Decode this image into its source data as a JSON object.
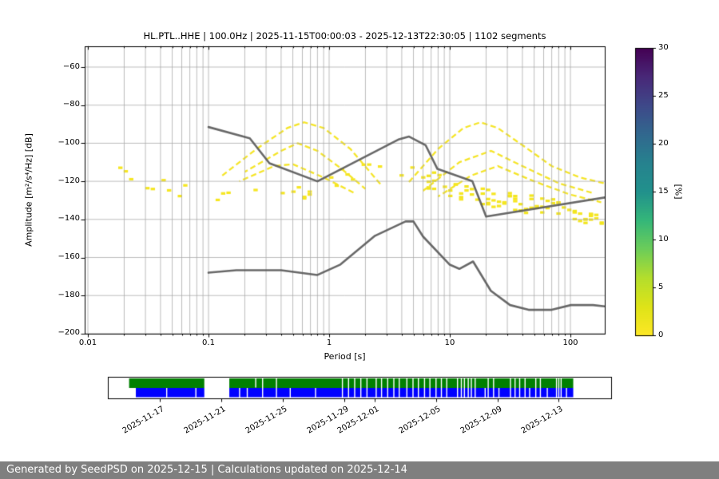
{
  "chart_data": {
    "type": "heatmap",
    "title": "HL.PTL..HHE | 100.0Hz | 2025-11-15T00:00:03 - 2025-12-13T22:30:05 | 1102 segments",
    "xlabel": "Period [s]",
    "ylabel": "Amplitude [m²/s⁴/Hz] [dB]",
    "xscale": "log",
    "xlim": [
      0.0094,
      193
    ],
    "ylim": [
      -200,
      -49
    ],
    "xticks": [
      0.01,
      0.1,
      1,
      10,
      100
    ],
    "xtick_labels": [
      "0.01",
      "0.1",
      "1",
      "10",
      "100"
    ],
    "yticks": [
      -60,
      -80,
      -100,
      -120,
      -140,
      -160,
      -180,
      -200
    ],
    "ytick_labels": [
      "−60",
      "−80",
      "−100",
      "−120",
      "−140",
      "−160",
      "−180",
      "−200"
    ],
    "grid": true,
    "colorbar": {
      "label": "[%]",
      "min": 0,
      "max": 30,
      "ticks": [
        0,
        5,
        10,
        15,
        20,
        25,
        30
      ],
      "tick_labels": [
        "0",
        "5",
        "10",
        "15",
        "20",
        "25",
        "30"
      ],
      "colormap": "viridis reversed (0% yellow, 30% dark purple)"
    },
    "psd_band_columns": [
      "period_s",
      "db_top",
      "db_bottom",
      "db_mode",
      "peak_pct"
    ],
    "psd_band": [
      [
        0.019,
        -110,
        -146,
        -118,
        10
      ],
      [
        0.024,
        -112,
        -149,
        -122,
        11
      ],
      [
        0.032,
        -114,
        -151,
        -125,
        11
      ],
      [
        0.05,
        -117,
        -152,
        -128,
        11
      ],
      [
        0.08,
        -119,
        -153,
        -131,
        11
      ],
      [
        0.13,
        -120,
        -155,
        -133,
        11
      ],
      [
        0.2,
        -121,
        -156,
        -135,
        12
      ],
      [
        0.35,
        -122,
        -158,
        -137,
        13
      ],
      [
        0.6,
        -120,
        -158,
        -137,
        13
      ],
      [
        1.0,
        -115,
        -156,
        -135,
        12
      ],
      [
        1.7,
        -109,
        -153,
        -129,
        12
      ],
      [
        2.6,
        -105,
        -150,
        -121,
        13
      ],
      [
        3.5,
        -105,
        -147,
        -122,
        13
      ],
      [
        5.0,
        -109,
        -146,
        -131,
        15
      ],
      [
        7.0,
        -113,
        -151,
        -139,
        14
      ],
      [
        10.0,
        -117,
        -156,
        -146,
        13
      ],
      [
        14.0,
        -120,
        -161,
        -150,
        13
      ],
      [
        20.0,
        -122,
        -165,
        -152,
        12
      ],
      [
        30.0,
        -124,
        -168,
        -151,
        11
      ],
      [
        50.0,
        -126,
        -169,
        -150,
        10
      ],
      [
        80.0,
        -128,
        -170,
        -149,
        10
      ],
      [
        120.0,
        -130,
        -170,
        -148,
        10
      ],
      [
        193.0,
        -132,
        -171,
        -147,
        10
      ]
    ],
    "noise_model_upper_nhnm": [
      [
        0.1,
        -91.5
      ],
      [
        0.22,
        -97.4
      ],
      [
        0.32,
        -110.5
      ],
      [
        0.8,
        -120.0
      ],
      [
        3.8,
        -97.9
      ],
      [
        4.6,
        -96.5
      ],
      [
        6.3,
        -101.0
      ],
      [
        7.9,
        -113.5
      ],
      [
        15.4,
        -120.0
      ],
      [
        20.0,
        -138.5
      ],
      [
        193.0,
        -128.5
      ]
    ],
    "noise_model_lower_nlnm": [
      [
        0.1,
        -168.0
      ],
      [
        0.17,
        -166.7
      ],
      [
        0.4,
        -166.7
      ],
      [
        0.8,
        -169.2
      ],
      [
        1.24,
        -163.7
      ],
      [
        2.4,
        -148.6
      ],
      [
        4.3,
        -141.1
      ],
      [
        5.0,
        -141.1
      ],
      [
        6.0,
        -149.0
      ],
      [
        10.0,
        -163.8
      ],
      [
        12.0,
        -166.0
      ],
      [
        15.6,
        -162.1
      ],
      [
        21.9,
        -177.5
      ],
      [
        31.6,
        -185.0
      ],
      [
        45.0,
        -187.5
      ],
      [
        70.0,
        -187.5
      ],
      [
        101.0,
        -185.0
      ],
      [
        154.0,
        -185.0
      ],
      [
        193.0,
        -185.7
      ]
    ],
    "transient_arcs": [
      [
        [
          0.13,
          -117
        ],
        [
          0.25,
          -103
        ],
        [
          0.45,
          -92
        ],
        [
          0.62,
          -89
        ],
        [
          0.9,
          -92
        ],
        [
          1.5,
          -103
        ],
        [
          2.7,
          -122
        ]
      ],
      [
        [
          0.2,
          -115
        ],
        [
          0.4,
          -104
        ],
        [
          0.55,
          -100
        ],
        [
          0.8,
          -104
        ],
        [
          1.3,
          -114
        ],
        [
          2.0,
          -124
        ]
      ],
      [
        [
          0.18,
          -120
        ],
        [
          0.35,
          -112
        ],
        [
          0.5,
          -111
        ],
        [
          0.9,
          -118
        ],
        [
          1.6,
          -126
        ]
      ],
      [
        [
          4.5,
          -121
        ],
        [
          8,
          -103
        ],
        [
          13,
          -92
        ],
        [
          18,
          -89
        ],
        [
          25,
          -92
        ],
        [
          40,
          -101
        ],
        [
          70,
          -112
        ],
        [
          120,
          -118
        ],
        [
          190,
          -121
        ]
      ],
      [
        [
          6,
          -125
        ],
        [
          12,
          -110
        ],
        [
          22,
          -104
        ],
        [
          40,
          -112
        ],
        [
          80,
          -121
        ],
        [
          150,
          -126
        ]
      ],
      [
        [
          8,
          -128
        ],
        [
          15,
          -117
        ],
        [
          25,
          -112
        ],
        [
          50,
          -120
        ],
        [
          100,
          -127
        ],
        [
          180,
          -131
        ]
      ]
    ],
    "colors": {
      "noise_model_line": "#595959",
      "grid_line": "#a8a8a8",
      "arc_yellow": "#f4e41d",
      "axes_frame": "#000000"
    }
  },
  "timeline": {
    "start_date": "2025-11-15",
    "end_day_offset": 28.94,
    "rows": [
      {
        "name": "psd-coverage",
        "color": "#008000",
        "start_day": 0.0
      },
      {
        "name": "data-coverage",
        "color": "#0000ff",
        "start_day": 0.44
      }
    ],
    "outage_days": [
      [
        4.9,
        6.53
      ]
    ],
    "gap_days_both": [
      8.7,
      9.6,
      13.9,
      14.3,
      14.7,
      15.1,
      15.5,
      16.1,
      16.45,
      16.85,
      17.25,
      17.6,
      18.1,
      18.5,
      18.85,
      19.25,
      19.6,
      20.0,
      20.35,
      20.7,
      21.4,
      21.65,
      21.85,
      22.1,
      22.3,
      22.55,
      23.4,
      23.75,
      24.85,
      25.15,
      25.45,
      25.8,
      26.5,
      26.8,
      27.85,
      28.0,
      28.15
    ],
    "gap_days_blue": [
      2.45,
      4.35,
      7.2,
      7.7,
      10.5,
      12.15,
      23.2,
      24.1,
      26.1,
      27.25,
      28.5
    ],
    "gap_days_green": [
      8.25
    ],
    "ticks": [
      {
        "day": 2,
        "label": "2025-11-17"
      },
      {
        "day": 6,
        "label": "2025-11-21"
      },
      {
        "day": 10,
        "label": "2025-11-25"
      },
      {
        "day": 14,
        "label": "2025-11-29"
      },
      {
        "day": 16,
        "label": "2025-12-01"
      },
      {
        "day": 20,
        "label": "2025-12-05"
      },
      {
        "day": 24,
        "label": "2025-12-09"
      },
      {
        "day": 28,
        "label": "2025-12-13"
      }
    ]
  },
  "footer": {
    "text": "Generated by SeedPSD on 2025-12-15 | Calculations updated on 2025-12-14",
    "background": "#7f7f7f"
  }
}
